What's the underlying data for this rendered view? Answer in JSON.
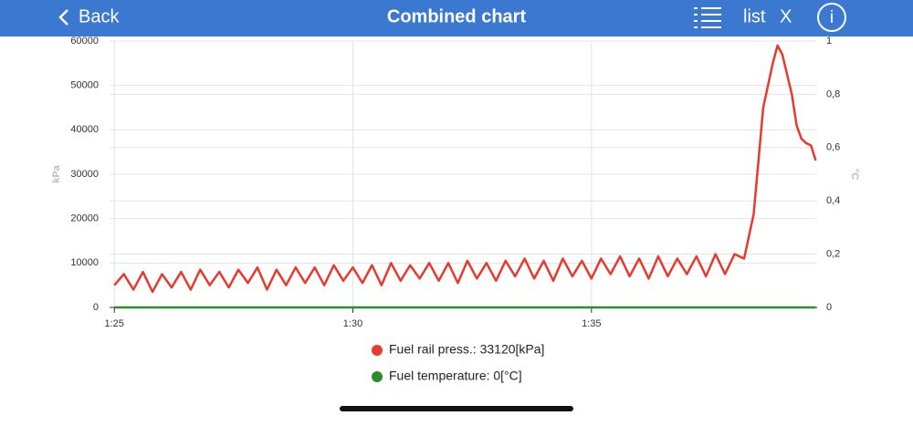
{
  "header": {
    "back": "Back",
    "title": "Combined chart",
    "list": "list",
    "close": "X",
    "info": "i"
  },
  "chart_data": {
    "type": "line",
    "ylabel": "kPa",
    "y2label": "°C",
    "x": [
      85.0,
      85.2,
      85.4,
      85.6,
      85.8,
      86.0,
      86.2,
      86.4,
      86.6,
      86.8,
      87.0,
      87.2,
      87.4,
      87.6,
      87.8,
      88.0,
      88.2,
      88.4,
      88.6,
      88.8,
      89.0,
      89.2,
      89.4,
      89.6,
      89.8,
      90.0,
      90.2,
      90.4,
      90.6,
      90.8,
      91.0,
      91.2,
      91.4,
      91.6,
      91.8,
      92.0,
      92.2,
      92.4,
      92.6,
      92.8,
      93.0,
      93.2,
      93.4,
      93.6,
      93.8,
      94.0,
      94.2,
      94.4,
      94.6,
      94.8,
      95.0,
      95.2,
      95.4,
      95.6,
      95.8,
      96.0,
      96.2,
      96.4,
      96.6,
      96.8,
      97.0,
      97.2,
      97.4,
      97.6,
      97.8,
      98.0,
      98.2,
      98.4,
      98.6,
      98.8,
      98.9,
      99.0,
      99.2,
      99.3,
      99.4,
      99.5,
      99.6,
      99.7
    ],
    "xlim": [
      84.9,
      99.73
    ],
    "xticks": [
      {
        "value": 85,
        "label": "1:25"
      },
      {
        "value": 90,
        "label": "1:30"
      },
      {
        "value": 95,
        "label": "1:35"
      }
    ],
    "ylim": [
      0,
      60000
    ],
    "yticks": [
      0,
      10000,
      20000,
      30000,
      40000,
      50000,
      60000
    ],
    "y2lim": [
      0,
      1
    ],
    "y2ticks": [
      0,
      {
        "value": 0.2,
        "label": "0,2"
      },
      {
        "value": 0.4,
        "label": "0,4"
      },
      {
        "value": 0.6,
        "label": "0,6"
      },
      {
        "value": 0.8,
        "label": "0,8"
      },
      1
    ],
    "grid": true,
    "series": [
      {
        "name": "Fuel rail press.: 33120[kPa]",
        "color": "#e8392c",
        "values": [
          5000,
          7500,
          4000,
          8000,
          3500,
          7500,
          4500,
          8000,
          4000,
          8500,
          5000,
          8000,
          4500,
          8500,
          5500,
          9000,
          4000,
          8500,
          5000,
          9000,
          5500,
          9000,
          5000,
          9500,
          6000,
          9000,
          5500,
          9500,
          5000,
          10000,
          6000,
          9500,
          6500,
          10000,
          6000,
          10000,
          5500,
          10500,
          6500,
          10000,
          6000,
          10500,
          7000,
          11000,
          6500,
          10500,
          6000,
          11000,
          7000,
          10500,
          6500,
          11000,
          7500,
          11500,
          7000,
          11000,
          6500,
          11500,
          7000,
          11000,
          7500,
          11500,
          7000,
          12000,
          7500,
          12000,
          11000,
          21000,
          45000,
          55000,
          59000,
          57000,
          48000,
          41000,
          38000,
          37000,
          36500,
          33120
        ]
      },
      {
        "name": "Fuel temperature: 0[°C]",
        "color": "#2e8b2e",
        "axis": "y2",
        "values": [
          0,
          0,
          0,
          0,
          0,
          0,
          0,
          0,
          0,
          0,
          0,
          0,
          0,
          0,
          0,
          0,
          0,
          0,
          0,
          0,
          0,
          0,
          0,
          0,
          0,
          0,
          0,
          0,
          0,
          0,
          0,
          0,
          0,
          0,
          0,
          0,
          0,
          0,
          0,
          0,
          0,
          0,
          0,
          0,
          0,
          0,
          0,
          0,
          0,
          0,
          0,
          0,
          0,
          0,
          0,
          0,
          0,
          0,
          0,
          0,
          0,
          0,
          0,
          0,
          0,
          0,
          0,
          0,
          0,
          0,
          0,
          0,
          0,
          0,
          0,
          0,
          0,
          0
        ]
      }
    ]
  }
}
